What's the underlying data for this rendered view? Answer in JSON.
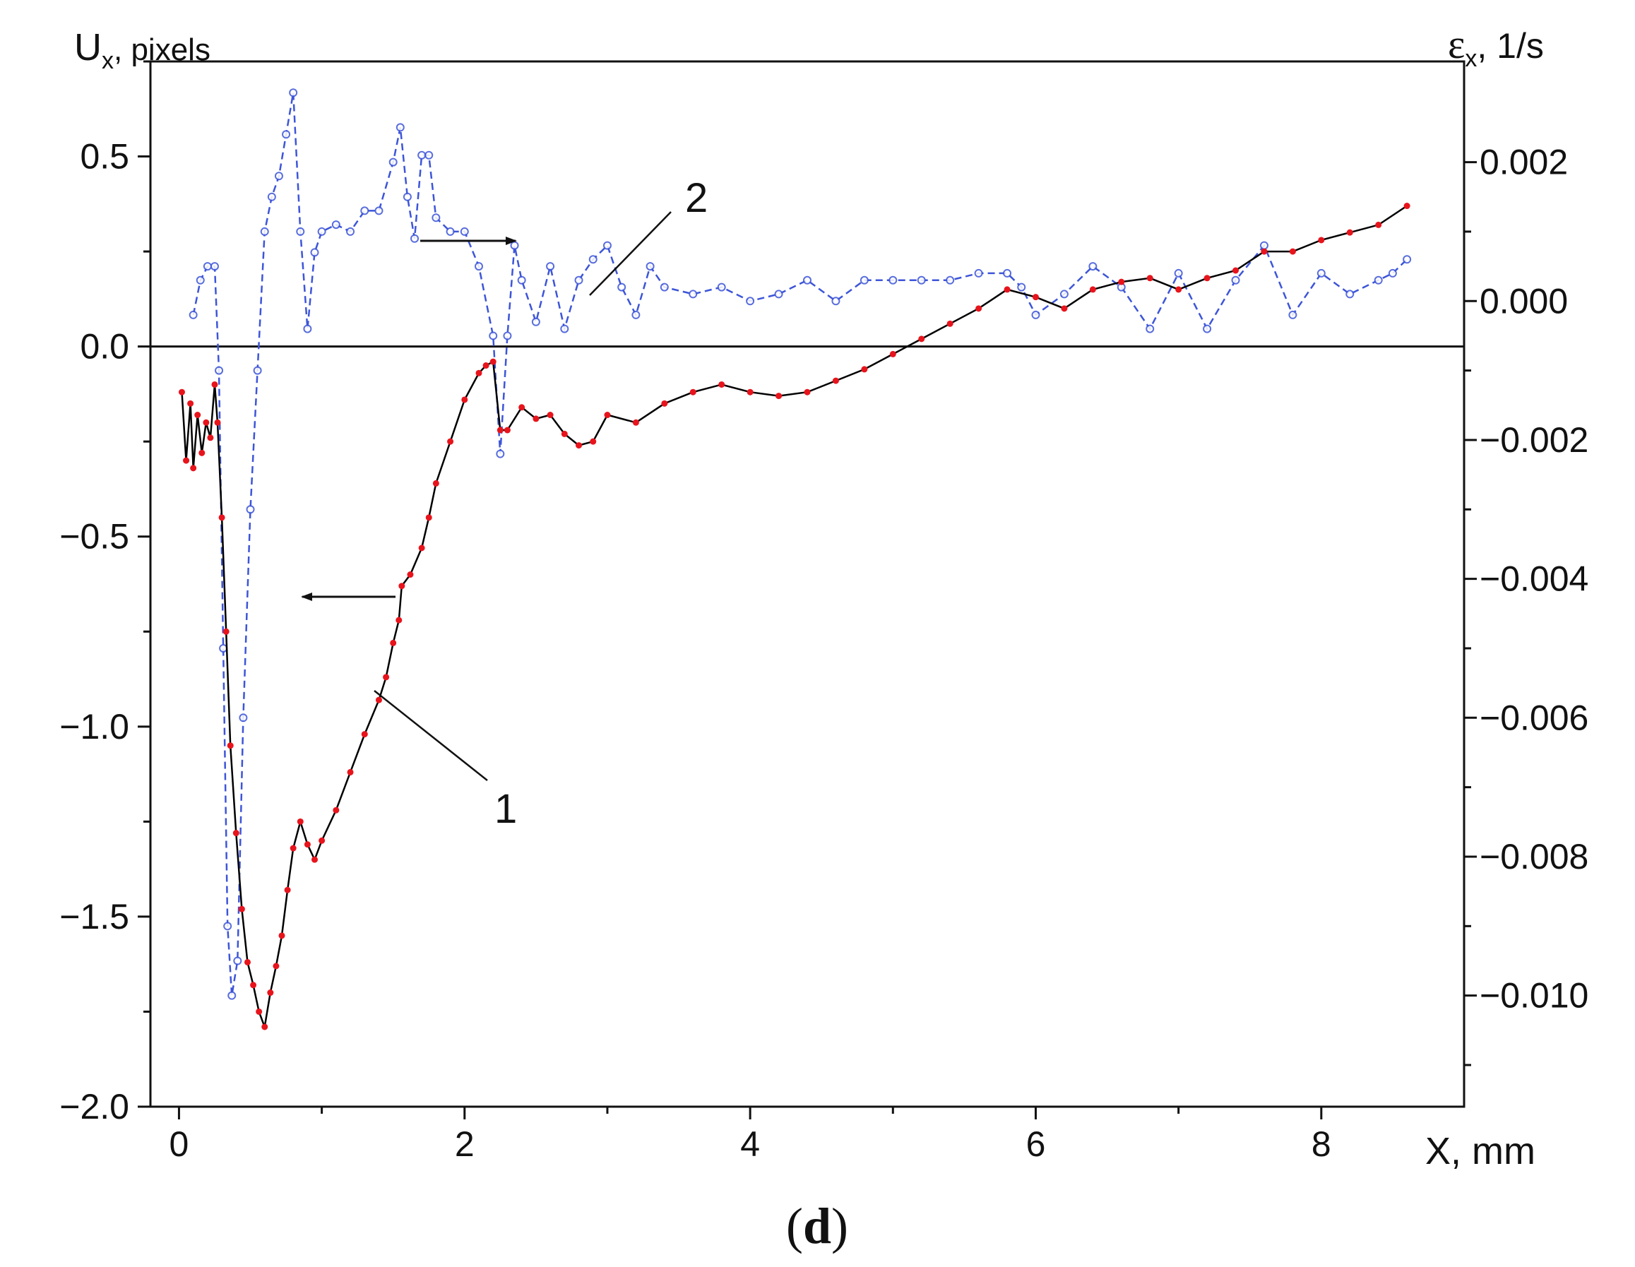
{
  "chart_data": {
    "type": "line",
    "panel_label": "(d)",
    "panel_label_bold": "d",
    "xlabel": "X, mm",
    "ylabel_left": {
      "symbol": "U",
      "subscript": "x",
      "unit": ", pixels"
    },
    "ylabel_right": {
      "symbol": "ε",
      "subscript": "x",
      "unit": ", 1/s"
    },
    "xlim": [
      -0.2,
      9.0
    ],
    "ylim_left": [
      -2.0,
      0.75
    ],
    "ylim_right": [
      -0.0116,
      0.00345
    ],
    "x_ticks": [
      0,
      2,
      4,
      6,
      8
    ],
    "x_tick_labels": [
      "0",
      "2",
      "4",
      "6",
      "8"
    ],
    "y_ticks_left": [
      -2.0,
      -1.5,
      -1.0,
      -0.5,
      0.0,
      0.5
    ],
    "y_tick_labels_left": [
      "−2.0",
      "−1.5",
      "−1.0",
      "−0.5",
      "0.0",
      "0.5"
    ],
    "y_ticks_right": [
      -0.01,
      -0.008,
      -0.006,
      -0.004,
      -0.002,
      0.0,
      0.002
    ],
    "y_tick_labels_right": [
      "−0.010",
      "−0.008",
      "−0.006",
      "−0.004",
      "−0.002",
      "0.000",
      "0.002"
    ],
    "zero_line": true,
    "grid": false,
    "series": [
      {
        "name": "1",
        "axis": "left",
        "color": "#e8141c",
        "marker": "filled-dot",
        "connector_color": "#000000",
        "points": [
          [
            0.02,
            -0.12
          ],
          [
            0.05,
            -0.3
          ],
          [
            0.08,
            -0.15
          ],
          [
            0.1,
            -0.32
          ],
          [
            0.13,
            -0.18
          ],
          [
            0.16,
            -0.28
          ],
          [
            0.19,
            -0.2
          ],
          [
            0.22,
            -0.24
          ],
          [
            0.25,
            -0.1
          ],
          [
            0.27,
            -0.2
          ],
          [
            0.3,
            -0.45
          ],
          [
            0.33,
            -0.75
          ],
          [
            0.36,
            -1.05
          ],
          [
            0.4,
            -1.28
          ],
          [
            0.44,
            -1.48
          ],
          [
            0.48,
            -1.62
          ],
          [
            0.52,
            -1.68
          ],
          [
            0.56,
            -1.75
          ],
          [
            0.6,
            -1.79
          ],
          [
            0.64,
            -1.7
          ],
          [
            0.68,
            -1.63
          ],
          [
            0.72,
            -1.55
          ],
          [
            0.76,
            -1.43
          ],
          [
            0.8,
            -1.32
          ],
          [
            0.85,
            -1.25
          ],
          [
            0.9,
            -1.31
          ],
          [
            0.95,
            -1.35
          ],
          [
            1.0,
            -1.3
          ],
          [
            1.1,
            -1.22
          ],
          [
            1.2,
            -1.12
          ],
          [
            1.3,
            -1.02
          ],
          [
            1.4,
            -0.93
          ],
          [
            1.45,
            -0.87
          ],
          [
            1.5,
            -0.78
          ],
          [
            1.54,
            -0.72
          ],
          [
            1.56,
            -0.63
          ],
          [
            1.62,
            -0.6
          ],
          [
            1.7,
            -0.53
          ],
          [
            1.75,
            -0.45
          ],
          [
            1.8,
            -0.36
          ],
          [
            1.9,
            -0.25
          ],
          [
            2.0,
            -0.14
          ],
          [
            2.1,
            -0.07
          ],
          [
            2.15,
            -0.05
          ],
          [
            2.2,
            -0.04
          ],
          [
            2.25,
            -0.22
          ],
          [
            2.3,
            -0.22
          ],
          [
            2.4,
            -0.16
          ],
          [
            2.5,
            -0.19
          ],
          [
            2.6,
            -0.18
          ],
          [
            2.7,
            -0.23
          ],
          [
            2.8,
            -0.26
          ],
          [
            2.9,
            -0.25
          ],
          [
            3.0,
            -0.18
          ],
          [
            3.2,
            -0.2
          ],
          [
            3.4,
            -0.15
          ],
          [
            3.6,
            -0.12
          ],
          [
            3.8,
            -0.1
          ],
          [
            4.0,
            -0.12
          ],
          [
            4.2,
            -0.13
          ],
          [
            4.4,
            -0.12
          ],
          [
            4.6,
            -0.09
          ],
          [
            4.8,
            -0.06
          ],
          [
            5.0,
            -0.02
          ],
          [
            5.2,
            0.02
          ],
          [
            5.4,
            0.06
          ],
          [
            5.6,
            0.1
          ],
          [
            5.8,
            0.15
          ],
          [
            6.0,
            0.13
          ],
          [
            6.2,
            0.1
          ],
          [
            6.4,
            0.15
          ],
          [
            6.6,
            0.17
          ],
          [
            6.8,
            0.18
          ],
          [
            7.0,
            0.15
          ],
          [
            7.2,
            0.18
          ],
          [
            7.4,
            0.2
          ],
          [
            7.6,
            0.25
          ],
          [
            7.8,
            0.25
          ],
          [
            8.0,
            0.28
          ],
          [
            8.2,
            0.3
          ],
          [
            8.4,
            0.32
          ],
          [
            8.6,
            0.37
          ]
        ]
      },
      {
        "name": "2",
        "axis": "right",
        "color": "#3d55d8",
        "marker": "open-circle",
        "line_style": "dashed",
        "points": [
          [
            0.1,
            -0.0002
          ],
          [
            0.15,
            0.0003
          ],
          [
            0.2,
            0.0005
          ],
          [
            0.25,
            0.0005
          ],
          [
            0.28,
            -0.001
          ],
          [
            0.31,
            -0.005
          ],
          [
            0.34,
            -0.009
          ],
          [
            0.37,
            -0.01
          ],
          [
            0.41,
            -0.0095
          ],
          [
            0.45,
            -0.006
          ],
          [
            0.5,
            -0.003
          ],
          [
            0.55,
            -0.001
          ],
          [
            0.6,
            0.001
          ],
          [
            0.65,
            0.0015
          ],
          [
            0.7,
            0.0018
          ],
          [
            0.75,
            0.0024
          ],
          [
            0.8,
            0.003
          ],
          [
            0.85,
            0.001
          ],
          [
            0.9,
            -0.0004
          ],
          [
            0.95,
            0.0007
          ],
          [
            1.0,
            0.001
          ],
          [
            1.1,
            0.0011
          ],
          [
            1.2,
            0.001
          ],
          [
            1.3,
            0.0013
          ],
          [
            1.4,
            0.0013
          ],
          [
            1.5,
            0.002
          ],
          [
            1.55,
            0.0025
          ],
          [
            1.6,
            0.0015
          ],
          [
            1.65,
            0.0009
          ],
          [
            1.7,
            0.0021
          ],
          [
            1.75,
            0.0021
          ],
          [
            1.8,
            0.0012
          ],
          [
            1.9,
            0.001
          ],
          [
            2.0,
            0.001
          ],
          [
            2.1,
            0.0005
          ],
          [
            2.2,
            -0.0005
          ],
          [
            2.25,
            -0.0022
          ],
          [
            2.3,
            -0.0005
          ],
          [
            2.35,
            0.0008
          ],
          [
            2.4,
            0.0003
          ],
          [
            2.5,
            -0.0003
          ],
          [
            2.6,
            0.0005
          ],
          [
            2.7,
            -0.0004
          ],
          [
            2.8,
            0.0003
          ],
          [
            2.9,
            0.0006
          ],
          [
            3.0,
            0.0008
          ],
          [
            3.1,
            0.0002
          ],
          [
            3.2,
            -0.0002
          ],
          [
            3.3,
            0.0005
          ],
          [
            3.4,
            0.0002
          ],
          [
            3.6,
            0.0001
          ],
          [
            3.8,
            0.0002
          ],
          [
            4.0,
            0.0
          ],
          [
            4.2,
            0.0001
          ],
          [
            4.4,
            0.0003
          ],
          [
            4.6,
            0.0
          ],
          [
            4.8,
            0.0003
          ],
          [
            5.0,
            0.0003
          ],
          [
            5.2,
            0.0003
          ],
          [
            5.4,
            0.0003
          ],
          [
            5.6,
            0.0004
          ],
          [
            5.8,
            0.0004
          ],
          [
            5.9,
            0.0002
          ],
          [
            6.0,
            -0.0002
          ],
          [
            6.2,
            0.0001
          ],
          [
            6.4,
            0.0005
          ],
          [
            6.6,
            0.0002
          ],
          [
            6.8,
            -0.0004
          ],
          [
            7.0,
            0.0004
          ],
          [
            7.2,
            -0.0004
          ],
          [
            7.4,
            0.0003
          ],
          [
            7.6,
            0.0008
          ],
          [
            7.8,
            -0.0002
          ],
          [
            8.0,
            0.0004
          ],
          [
            8.2,
            0.0001
          ],
          [
            8.4,
            0.0003
          ],
          [
            8.5,
            0.0004
          ],
          [
            8.6,
            0.0006
          ]
        ]
      }
    ],
    "annotations": [
      {
        "label": "1",
        "series": "1",
        "arrow_direction": "left",
        "arrow_meaning": "left axis"
      },
      {
        "label": "2",
        "series": "2",
        "arrow_direction": "right",
        "arrow_meaning": "right axis"
      }
    ]
  }
}
